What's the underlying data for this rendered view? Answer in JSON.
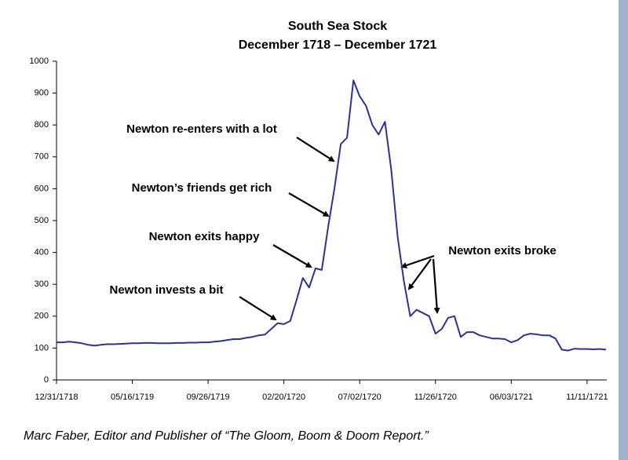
{
  "chart_data": {
    "type": "line",
    "title": "South Sea Stock",
    "subtitle": "December 1718 – December 1721",
    "source": "Marc Faber, Editor and Publisher of “The Gloom, Boom & Doom Report.”",
    "categories": [
      "12/31/1718",
      null,
      null,
      null,
      null,
      null,
      null,
      null,
      null,
      null,
      null,
      null,
      "05/16/1719",
      null,
      null,
      null,
      null,
      null,
      null,
      null,
      null,
      null,
      null,
      null,
      "09/26/1719",
      null,
      null,
      null,
      null,
      null,
      null,
      null,
      null,
      null,
      null,
      null,
      "02/20/1720",
      null,
      null,
      null,
      null,
      null,
      null,
      null,
      null,
      null,
      null,
      null,
      "07/02/1720",
      null,
      null,
      null,
      null,
      null,
      null,
      null,
      null,
      null,
      null,
      null,
      "11/26/1720",
      null,
      null,
      null,
      null,
      null,
      null,
      null,
      null,
      null,
      null,
      null,
      "06/03/1721",
      null,
      null,
      null,
      null,
      null,
      null,
      null,
      null,
      null,
      null,
      null,
      "11/11/1721",
      null,
      null,
      null
    ],
    "values": [
      118,
      118,
      120,
      118,
      115,
      110,
      108,
      110,
      112,
      112,
      113,
      114,
      115,
      115,
      116,
      116,
      115,
      115,
      115,
      116,
      116,
      117,
      117,
      118,
      118,
      120,
      122,
      125,
      128,
      128,
      132,
      135,
      140,
      142,
      160,
      178,
      175,
      185,
      250,
      320,
      290,
      350,
      345,
      480,
      600,
      740,
      760,
      940,
      890,
      860,
      800,
      770,
      810,
      660,
      450,
      310,
      200,
      220,
      210,
      200,
      145,
      160,
      195,
      200,
      135,
      150,
      150,
      140,
      135,
      130,
      130,
      128,
      118,
      125,
      140,
      145,
      143,
      140,
      140,
      130,
      95,
      92,
      98,
      97,
      97,
      96,
      97,
      95
    ],
    "color": "#2e3192",
    "ylim": [
      0,
      1000
    ],
    "yticks": [
      0,
      100,
      200,
      300,
      400,
      500,
      600,
      700,
      800,
      900,
      1000
    ],
    "annotations": [
      "Newton re-enters with a lot",
      "Newton’s friends get rich",
      "Newton exits happy",
      "Newton invests a bit",
      "Newton exits broke"
    ]
  }
}
